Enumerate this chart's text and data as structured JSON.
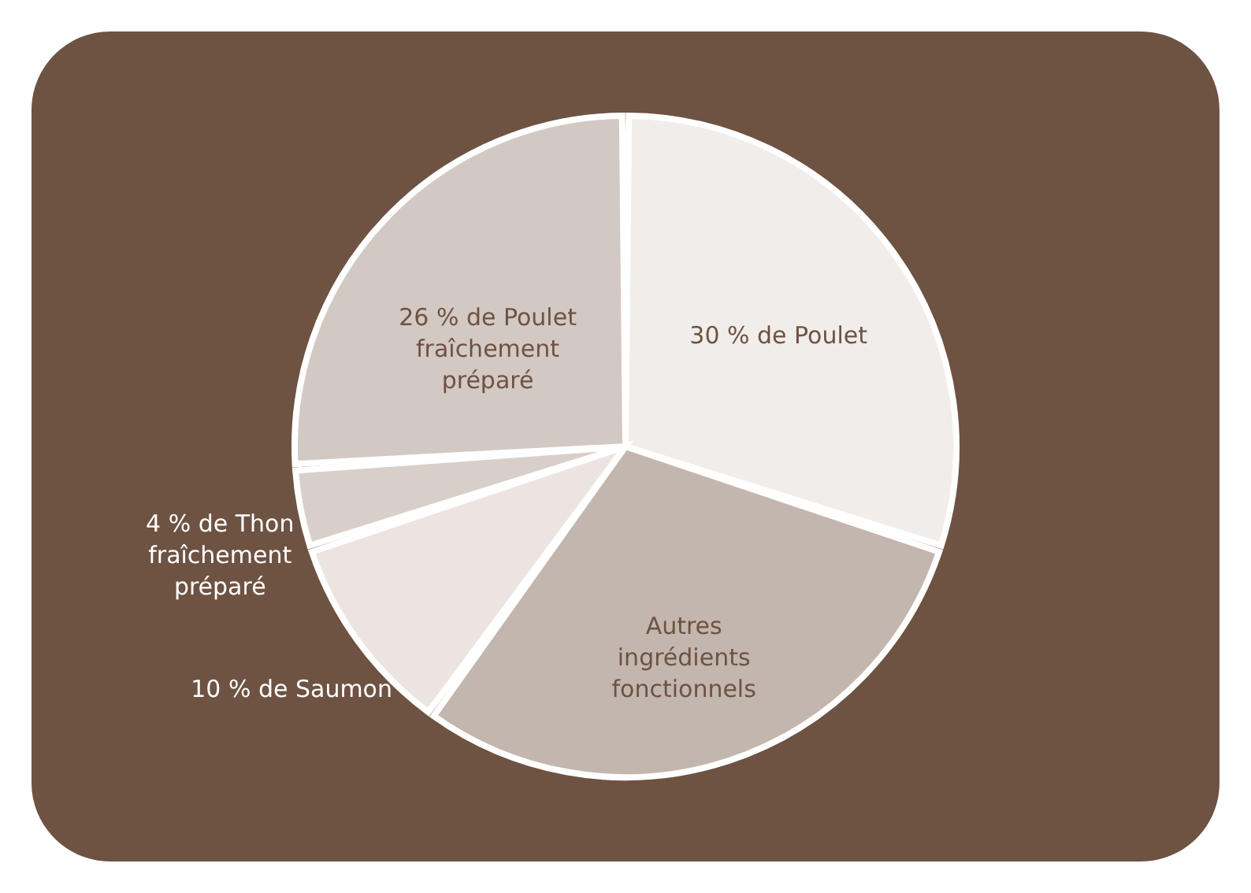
{
  "chart_data": {
    "type": "pie",
    "categories": [
      "30 % de Poulet",
      "Autres ingrédients fonctionnels",
      "10 % de Saumon",
      "4 % de Thon fraîchement préparé",
      "26 % de Poulet fraîchement préparé"
    ],
    "values": [
      30,
      30,
      10,
      4,
      26
    ],
    "colors": [
      "#f1edeb",
      "#c2b6ae",
      "#ebe4e0",
      "#d9cfc9",
      "#d3c9c3"
    ]
  }
}
